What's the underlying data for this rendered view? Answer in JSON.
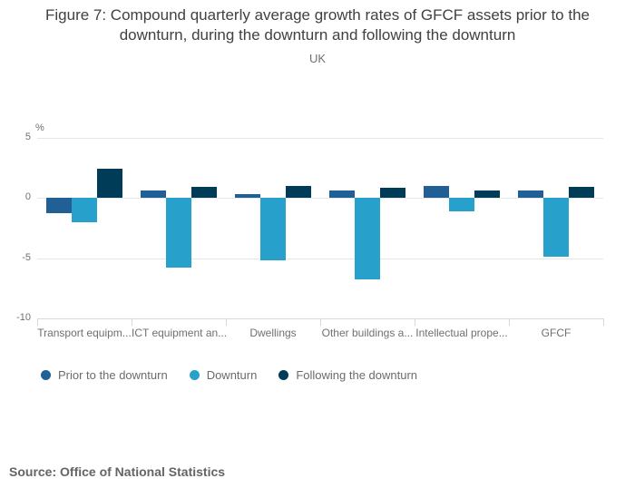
{
  "header": {
    "title": "Figure 7: Compound quarterly average growth rates of GFCF assets prior to the downturn, during the downturn and following the downturn",
    "subtitle": "UK"
  },
  "chart_data": {
    "type": "bar",
    "title": "Figure 7: Compound quarterly average growth rates of GFCF assets prior to the downturn, during the downturn and following the downturn",
    "subtitle": "UK",
    "unit_label": "%",
    "categories": [
      "Transport equipm...",
      "ICT equipment an...",
      "Dwellings",
      "Other buildings a...",
      "Intellectual prope...",
      "GFCF"
    ],
    "series": [
      {
        "name": "Prior to the downturn",
        "color": "#206095",
        "values": [
          -1.3,
          0.6,
          0.3,
          0.6,
          1.0,
          0.6
        ]
      },
      {
        "name": "Downturn",
        "color": "#27a0cc",
        "values": [
          -2.0,
          -5.8,
          -5.2,
          -6.8,
          -1.1,
          -4.9
        ]
      },
      {
        "name": "Following the downturn",
        "color": "#003c57",
        "values": [
          2.4,
          0.9,
          1.0,
          0.8,
          0.6,
          0.9
        ]
      }
    ],
    "y_axis": {
      "label": "%",
      "max": 5,
      "min": -10,
      "ticks": [
        5,
        0,
        -5,
        -10
      ]
    },
    "grid": true,
    "legend_position": "bottom"
  },
  "footer": {
    "source": "Source: Office of National Statistics"
  }
}
